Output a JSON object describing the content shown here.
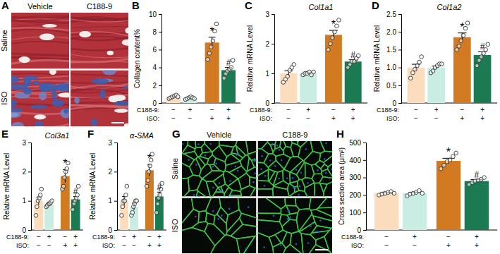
{
  "image_panels": [
    {
      "panel_label": "A",
      "columns": [
        "Vehicle",
        "C188-9"
      ],
      "rows": [
        "Saline",
        "ISO"
      ]
    },
    {
      "panel_label": "G",
      "columns": [
        "Vehicle",
        "C188-9"
      ],
      "rows": [
        "Saline",
        "ISO"
      ]
    }
  ],
  "chart_data": [
    {
      "type": "bar",
      "panel_label": "B",
      "ylabel": "Collagen content%",
      "categories": [
        null,
        null,
        null,
        null
      ],
      "x_table": [
        {
          "label": "C188-9:",
          "signs": [
            "−",
            "+",
            "−",
            "+"
          ]
        },
        {
          "label": "ISO:",
          "signs": [
            "−",
            "−",
            "+",
            "+"
          ]
        }
      ],
      "series": [
        {
          "values": [
            0.7,
            0.55,
            6.8,
            3.7
          ],
          "errors": [
            0.06,
            0.05,
            0.6,
            0.3
          ],
          "points": [
            [
              0.5,
              0.6,
              0.7,
              0.8,
              0.9,
              0.7
            ],
            [
              0.4,
              0.5,
              0.6,
              0.7,
              0.6,
              0.5
            ],
            [
              4.9,
              5.6,
              6.3,
              7.0,
              8.1,
              8.9
            ],
            [
              2.8,
              3.3,
              3.6,
              3.8,
              4.0,
              4.8
            ]
          ],
          "colors": [
            "#fbdcbc",
            "#c9ede2",
            "#d27a22",
            "#1b7a52"
          ]
        }
      ],
      "annotations": [
        null,
        null,
        "*",
        "#"
      ],
      "ylim": [
        0,
        10
      ],
      "yticks": [
        0,
        2,
        4,
        6,
        8,
        10
      ]
    },
    {
      "type": "bar",
      "panel_label": "C",
      "title": "Col1a1",
      "ylabel": "Relative mRNA Level",
      "categories": [
        null,
        null,
        null,
        null
      ],
      "x_table": [
        {
          "label": "C188-9:",
          "signs": [
            "−",
            "+",
            "−",
            "+"
          ]
        },
        {
          "label": "ISO:",
          "signs": [
            "−",
            "−",
            "+",
            "+"
          ]
        }
      ],
      "series": [
        {
          "values": [
            1.0,
            1.0,
            2.3,
            1.4
          ],
          "errors": [
            0.09,
            0.02,
            0.15,
            0.06
          ],
          "points": [
            [
              0.7,
              0.8,
              0.9,
              1.1,
              1.2,
              1.3
            ],
            [
              0.95,
              1.0,
              1.0,
              1.05,
              0.95,
              1.05
            ],
            [
              1.8,
              2.0,
              2.2,
              2.4,
              2.6,
              2.8
            ],
            [
              1.2,
              1.3,
              1.4,
              1.4,
              1.5,
              1.6
            ]
          ],
          "colors": [
            "#fbdcbc",
            "#c9ede2",
            "#d27a22",
            "#1b7a52"
          ]
        }
      ],
      "annotations": [
        null,
        null,
        "*",
        "#"
      ],
      "ylim": [
        0,
        3
      ],
      "yticks": [
        0,
        1,
        2,
        3
      ]
    },
    {
      "type": "bar",
      "panel_label": "D",
      "title": "Col1a2",
      "ylabel": "Relative mRNA Level",
      "categories": [
        null,
        null,
        null,
        null
      ],
      "x_table": [
        {
          "label": "C188-9:",
          "signs": [
            "−",
            "+",
            "−",
            "+"
          ]
        },
        {
          "label": "ISO:",
          "signs": [
            "−",
            "−",
            "+",
            "+"
          ]
        }
      ],
      "series": [
        {
          "values": [
            1.0,
            1.0,
            1.85,
            1.35
          ],
          "errors": [
            0.09,
            0.04,
            0.12,
            0.09
          ],
          "points": [
            [
              0.7,
              0.85,
              0.95,
              1.05,
              1.15,
              1.3
            ],
            [
              0.85,
              0.9,
              1.0,
              1.05,
              1.1,
              1.1
            ],
            [
              1.5,
              1.6,
              1.75,
              1.9,
              2.1,
              2.25
            ],
            [
              1.05,
              1.2,
              1.3,
              1.4,
              1.5,
              1.65
            ]
          ],
          "colors": [
            "#fbdcbc",
            "#c9ede2",
            "#d27a22",
            "#1b7a52"
          ]
        }
      ],
      "annotations": [
        null,
        null,
        "*",
        "#"
      ],
      "ylim": [
        0,
        2.5
      ],
      "yticks": [
        0,
        0.5,
        {
          "value": 1,
          "label": "1.0"
        },
        1.5,
        {
          "value": 2,
          "label": "2.0"
        },
        2.5
      ]
    },
    {
      "type": "bar",
      "panel_label": "E",
      "title": "Col3a1",
      "ylabel": "Relative mRNA Level",
      "categories": [
        null,
        null,
        null,
        null
      ],
      "x_table": [
        {
          "label": "C188-9:",
          "signs": [
            "−",
            "+",
            "−",
            "+"
          ]
        },
        {
          "label": "ISO:",
          "signs": [
            "−",
            "−",
            "+",
            "+"
          ]
        }
      ],
      "series": [
        {
          "values": [
            1.0,
            0.9,
            1.85,
            1.05
          ],
          "errors": [
            0.13,
            0.03,
            0.22,
            0.1
          ],
          "points": [
            [
              0.5,
              0.8,
              1.0,
              1.1,
              1.2,
              1.4
            ],
            [
              0.8,
              0.85,
              0.9,
              0.9,
              0.95,
              1.0
            ],
            [
              1.4,
              1.5,
              1.8,
              2.0,
              2.1,
              2.3
            ],
            [
              0.7,
              0.9,
              1.0,
              1.1,
              1.2,
              1.5
            ]
          ],
          "colors": [
            "#fbdcbc",
            "#c9ede2",
            "#d27a22",
            "#1b7a52"
          ]
        }
      ],
      "annotations": [
        null,
        null,
        "*",
        "#"
      ],
      "ylim": [
        0,
        3
      ],
      "yticks": [
        0,
        1,
        2,
        3
      ]
    },
    {
      "type": "bar",
      "panel_label": "F",
      "title": "α-SMA",
      "ylabel": "Relative mRNA Level",
      "categories": [
        null,
        null,
        null,
        null
      ],
      "x_table": [
        {
          "label": "C188-9:",
          "signs": [
            "−",
            "+",
            "−",
            "+"
          ]
        },
        {
          "label": "ISO:",
          "signs": [
            "−",
            "−",
            "+",
            "+"
          ]
        }
      ],
      "series": [
        {
          "values": [
            1.0,
            0.8,
            2.05,
            1.15
          ],
          "errors": [
            0.15,
            0.12,
            0.2,
            0.15
          ],
          "points": [
            [
              0.5,
              0.8,
              1.0,
              1.0,
              1.2,
              1.5
            ],
            [
              0.5,
              0.6,
              0.8,
              0.9,
              1.0,
              1.0
            ],
            [
              1.5,
              1.7,
              2.0,
              2.2,
              2.4,
              2.6
            ],
            [
              0.6,
              0.9,
              1.1,
              1.2,
              1.4,
              1.6
            ]
          ],
          "colors": [
            "#fbdcbc",
            "#c9ede2",
            "#d27a22",
            "#1b7a52"
          ]
        }
      ],
      "annotations": [
        null,
        null,
        "*",
        "#"
      ],
      "ylim": [
        0,
        3
      ],
      "yticks": [
        0,
        1,
        2,
        3
      ]
    },
    {
      "type": "bar",
      "panel_label": "H",
      "ylabel": "Cross section area (μm²)",
      "categories": [
        null,
        null,
        null,
        null
      ],
      "x_table": [
        {
          "label": "C188-9:",
          "signs": [
            "−",
            "+",
            "−",
            "+"
          ]
        },
        {
          "label": "ISO:",
          "signs": [
            "−",
            "−",
            "+",
            "+"
          ]
        }
      ],
      "series": [
        {
          "values": [
            210,
            210,
            395,
            280
          ],
          "errors": [
            6,
            6,
            15,
            8
          ],
          "points": [
            [
              200,
              205,
              210,
              215,
              220,
              210
            ],
            [
              195,
              205,
              210,
              215,
              225,
              210
            ],
            [
              350,
              370,
              390,
              400,
              420,
              440
            ],
            [
              260,
              270,
              280,
              285,
              290,
              300
            ]
          ],
          "colors": [
            "#fbdcbc",
            "#c9ede2",
            "#d27a22",
            "#1b7a52"
          ]
        }
      ],
      "annotations": [
        null,
        null,
        "*",
        "#"
      ],
      "ylim": [
        0,
        500
      ],
      "yticks": [
        0,
        100,
        200,
        300,
        400,
        500
      ]
    }
  ]
}
